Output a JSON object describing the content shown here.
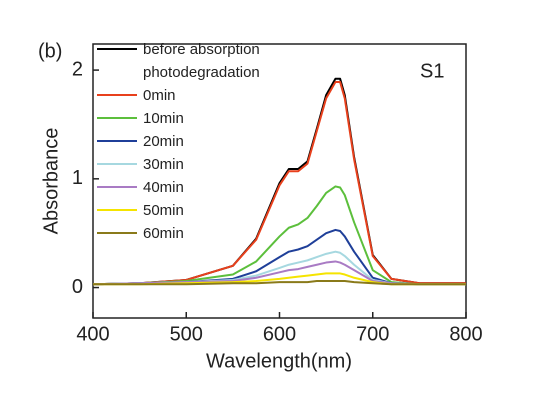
{
  "chart_data": {
    "type": "line",
    "annotations": [
      "(b)",
      "S1"
    ],
    "xlabel": "Wavelength(nm)",
    "ylabel": "Absorbance",
    "xlim": [
      400,
      800
    ],
    "xticks": [
      400,
      500,
      600,
      700,
      800
    ],
    "ylim": [
      -0.28,
      2.24
    ],
    "yticks": [
      0,
      1,
      2
    ],
    "legend": "upper left",
    "x": [
      400,
      450,
      500,
      550,
      575,
      600,
      610,
      620,
      630,
      640,
      650,
      660,
      665,
      670,
      680,
      700,
      720,
      750,
      800
    ],
    "series": [
      {
        "name": "before absorption photodegradation",
        "color": "#000000",
        "values": [
          0.03,
          0.04,
          0.07,
          0.2,
          0.45,
          0.96,
          1.09,
          1.09,
          1.16,
          1.46,
          1.77,
          1.92,
          1.92,
          1.77,
          1.2,
          0.3,
          0.08,
          0.04,
          0.04
        ]
      },
      {
        "name": "0min",
        "color": "#e8401c",
        "values": [
          0.03,
          0.04,
          0.07,
          0.2,
          0.44,
          0.94,
          1.07,
          1.07,
          1.14,
          1.44,
          1.74,
          1.89,
          1.89,
          1.74,
          1.18,
          0.29,
          0.08,
          0.04,
          0.04
        ]
      },
      {
        "name": "10min",
        "color": "#5cbf3c",
        "values": [
          0.03,
          0.04,
          0.06,
          0.12,
          0.24,
          0.47,
          0.55,
          0.58,
          0.64,
          0.75,
          0.87,
          0.93,
          0.92,
          0.85,
          0.6,
          0.16,
          0.05,
          0.03,
          0.03
        ]
      },
      {
        "name": "20min",
        "color": "#1f3f99",
        "values": [
          0.03,
          0.04,
          0.05,
          0.08,
          0.15,
          0.28,
          0.33,
          0.35,
          0.38,
          0.44,
          0.5,
          0.53,
          0.52,
          0.47,
          0.33,
          0.09,
          0.04,
          0.03,
          0.03
        ]
      },
      {
        "name": "30min",
        "color": "#a6d8e0",
        "values": [
          0.03,
          0.04,
          0.05,
          0.07,
          0.11,
          0.18,
          0.21,
          0.23,
          0.25,
          0.28,
          0.31,
          0.33,
          0.32,
          0.29,
          0.21,
          0.07,
          0.04,
          0.03,
          0.03
        ]
      },
      {
        "name": "40min",
        "color": "#a97bc4",
        "values": [
          0.03,
          0.04,
          0.05,
          0.06,
          0.09,
          0.14,
          0.16,
          0.17,
          0.19,
          0.21,
          0.23,
          0.24,
          0.23,
          0.21,
          0.16,
          0.06,
          0.04,
          0.03,
          0.03
        ]
      },
      {
        "name": "50min",
        "color": "#f5e400",
        "values": [
          0.03,
          0.03,
          0.04,
          0.05,
          0.06,
          0.08,
          0.09,
          0.1,
          0.11,
          0.12,
          0.13,
          0.13,
          0.13,
          0.12,
          0.09,
          0.05,
          0.03,
          0.03,
          0.03
        ]
      },
      {
        "name": "60min",
        "color": "#8a7a1a",
        "values": [
          0.03,
          0.03,
          0.03,
          0.04,
          0.04,
          0.05,
          0.05,
          0.05,
          0.05,
          0.06,
          0.06,
          0.06,
          0.06,
          0.06,
          0.05,
          0.04,
          0.03,
          0.03,
          0.03
        ]
      }
    ]
  }
}
